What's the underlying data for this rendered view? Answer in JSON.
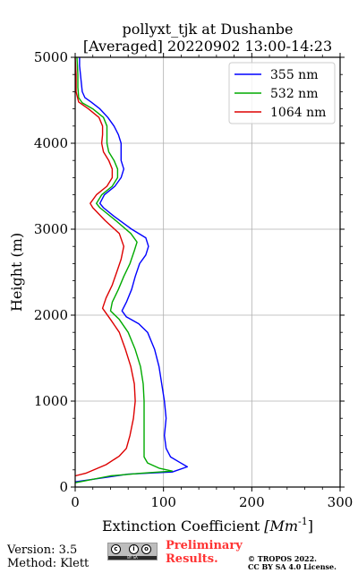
{
  "chart_data": {
    "type": "line",
    "title": "pollyxt_tjk at Dushanbe",
    "subtitle": "[Averaged] 20220902 13:00-14:23",
    "xlabel_prefix": "Extinction Coefficient ",
    "xlabel_unit": "[Mm",
    "xlabel_exp": "-1",
    "xlabel_close": "]",
    "ylabel": "Height (m)",
    "xlim": [
      0,
      300
    ],
    "ylim": [
      0,
      5000
    ],
    "xticks": [
      0,
      100,
      200,
      300
    ],
    "xtick_labels": [
      "0",
      "100",
      "200",
      "300"
    ],
    "yticks": [
      0,
      1000,
      2000,
      3000,
      4000,
      5000
    ],
    "ytick_labels": [
      "0",
      "1000",
      "2000",
      "3000",
      "4000",
      "5000"
    ],
    "grid": true,
    "legend_position": "top-right",
    "series": [
      {
        "name": "355 nm",
        "color": "#0000ff",
        "points": [
          [
            0,
            60
          ],
          [
            60,
            150
          ],
          [
            110,
            175
          ],
          [
            127,
            235
          ],
          [
            118,
            290
          ],
          [
            108,
            350
          ],
          [
            103,
            450
          ],
          [
            101,
            600
          ],
          [
            103,
            800
          ],
          [
            101,
            1000
          ],
          [
            98,
            1200
          ],
          [
            95,
            1400
          ],
          [
            90,
            1600
          ],
          [
            82,
            1800
          ],
          [
            72,
            1900
          ],
          [
            58,
            1980
          ],
          [
            53,
            2050
          ],
          [
            58,
            2150
          ],
          [
            64,
            2300
          ],
          [
            68,
            2450
          ],
          [
            73,
            2600
          ],
          [
            80,
            2700
          ],
          [
            83,
            2800
          ],
          [
            80,
            2900
          ],
          [
            64,
            3000
          ],
          [
            44,
            3150
          ],
          [
            32,
            3250
          ],
          [
            28,
            3300
          ],
          [
            33,
            3400
          ],
          [
            45,
            3500
          ],
          [
            52,
            3600
          ],
          [
            55,
            3700
          ],
          [
            52,
            3800
          ],
          [
            52,
            3900
          ],
          [
            52,
            4000
          ],
          [
            49,
            4100
          ],
          [
            44,
            4200
          ],
          [
            37,
            4300
          ],
          [
            28,
            4400
          ],
          [
            18,
            4480
          ],
          [
            11,
            4530
          ],
          [
            8,
            4600
          ],
          [
            7,
            4700
          ],
          [
            6,
            4800
          ],
          [
            5,
            4900
          ],
          [
            5,
            5000
          ]
        ]
      },
      {
        "name": "532 nm",
        "color": "#00aa00",
        "points": [
          [
            0,
            50
          ],
          [
            40,
            130
          ],
          [
            75,
            160
          ],
          [
            110,
            185
          ],
          [
            95,
            220
          ],
          [
            82,
            280
          ],
          [
            78,
            350
          ],
          [
            78,
            450
          ],
          [
            78,
            600
          ],
          [
            78,
            800
          ],
          [
            78,
            1000
          ],
          [
            77,
            1200
          ],
          [
            74,
            1400
          ],
          [
            68,
            1600
          ],
          [
            60,
            1800
          ],
          [
            50,
            1950
          ],
          [
            40,
            2050
          ],
          [
            42,
            2150
          ],
          [
            49,
            2300
          ],
          [
            55,
            2450
          ],
          [
            62,
            2600
          ],
          [
            67,
            2750
          ],
          [
            70,
            2850
          ],
          [
            63,
            2950
          ],
          [
            46,
            3100
          ],
          [
            28,
            3250
          ],
          [
            24,
            3300
          ],
          [
            30,
            3400
          ],
          [
            42,
            3500
          ],
          [
            48,
            3600
          ],
          [
            48,
            3700
          ],
          [
            44,
            3800
          ],
          [
            38,
            3900
          ],
          [
            36,
            4000
          ],
          [
            36,
            4100
          ],
          [
            36,
            4200
          ],
          [
            32,
            4300
          ],
          [
            20,
            4400
          ],
          [
            8,
            4470
          ],
          [
            4,
            4530
          ],
          [
            3,
            4650
          ],
          [
            3,
            4800
          ],
          [
            2,
            5000
          ]
        ]
      },
      {
        "name": "1064 nm",
        "color": "#dd0000",
        "points": [
          [
            0,
            130
          ],
          [
            12,
            160
          ],
          [
            35,
            260
          ],
          [
            50,
            360
          ],
          [
            58,
            450
          ],
          [
            62,
            600
          ],
          [
            66,
            800
          ],
          [
            68,
            1000
          ],
          [
            67,
            1200
          ],
          [
            63,
            1400
          ],
          [
            57,
            1600
          ],
          [
            50,
            1800
          ],
          [
            40,
            1950
          ],
          [
            31,
            2080
          ],
          [
            35,
            2200
          ],
          [
            42,
            2350
          ],
          [
            47,
            2500
          ],
          [
            52,
            2650
          ],
          [
            55,
            2800
          ],
          [
            50,
            2950
          ],
          [
            34,
            3100
          ],
          [
            20,
            3250
          ],
          [
            17,
            3300
          ],
          [
            24,
            3400
          ],
          [
            36,
            3500
          ],
          [
            42,
            3600
          ],
          [
            42,
            3700
          ],
          [
            38,
            3800
          ],
          [
            32,
            3900
          ],
          [
            30,
            4000
          ],
          [
            31,
            4100
          ],
          [
            31,
            4200
          ],
          [
            27,
            4300
          ],
          [
            15,
            4400
          ],
          [
            4,
            4480
          ],
          [
            1,
            4600
          ],
          [
            1,
            4800
          ],
          [
            0,
            5000
          ]
        ]
      }
    ]
  },
  "footer": {
    "version": "Version: 3.5",
    "method": "Method: Klett",
    "license_badge_text": "BY SA",
    "preliminary_line1": "Preliminary",
    "preliminary_line2": "Results.",
    "copyright_line1": "© TROPOS 2022.",
    "copyright_line2": "CC BY SA 4.0 License."
  }
}
